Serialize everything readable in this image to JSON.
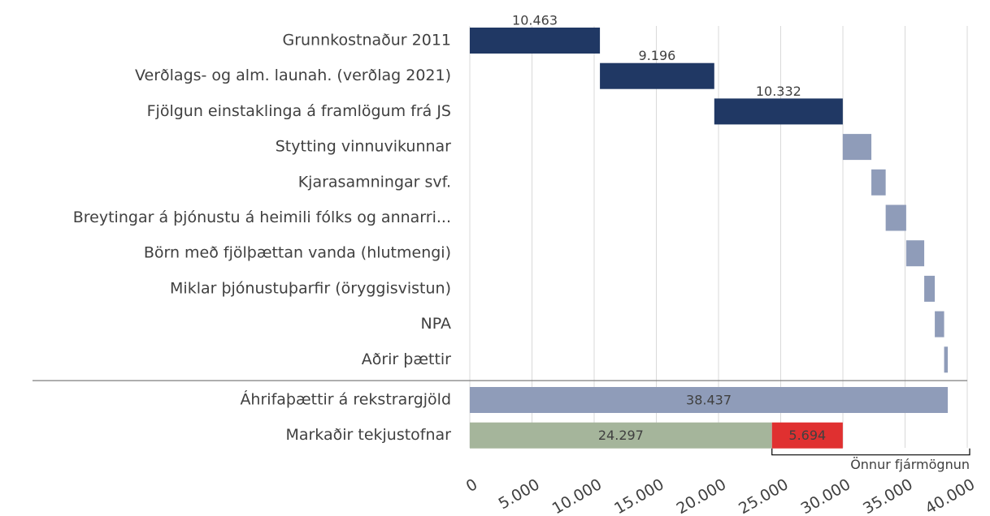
{
  "chart_data": {
    "type": "waterfall",
    "steps": {
      "categories": [
        "Grunnkostnaður 2011",
        "Verðlags- og alm. launah. (verðlag 2021)",
        "Fjölgun einstaklinga á framlögum frá JS",
        "Stytting vinnuvikunnar",
        "Kjarasamningar svf.",
        "Breytingar á þjónustu á heimili fólks og annarri...",
        "Börn með fjölþættan vanda (hlutmengi)",
        "Miklar þjónustuþarfir (öryggisvistun)",
        "NPA",
        "Aðrir þættir"
      ],
      "values": [
        10463,
        9196,
        10332,
        2300,
        1150,
        1650,
        1450,
        850,
        750,
        296
      ],
      "value_labels": [
        "10.463",
        "9.196",
        "10.332",
        null,
        null,
        null,
        null,
        null,
        null,
        null
      ],
      "colors": [
        "#203864",
        "#203864",
        "#203864",
        "#8f9cb9",
        "#8f9cb9",
        "#8f9cb9",
        "#8f9cb9",
        "#8f9cb9",
        "#8f9cb9",
        "#8f9cb9"
      ]
    },
    "totals": {
      "categories": [
        "Áhrifaþættir á rekstrargjöld",
        "Markaðir tekjustofnar"
      ],
      "segments": [
        [
          38437
        ],
        [
          24297,
          5694
        ]
      ],
      "value_labels": [
        [
          "38.437"
        ],
        [
          "24.297",
          "5.694"
        ]
      ],
      "colors": [
        [
          "#8f9cb9"
        ],
        [
          "#a5b59b",
          "#e03030"
        ]
      ]
    },
    "annotation": "Önnur fjármögnun",
    "xlim": [
      0,
      40000
    ],
    "xticks": [
      0,
      {
        "value": 5000,
        "label": "5.000"
      },
      {
        "value": 10000,
        "label": "10.000"
      },
      {
        "value": 15000,
        "label": "15.000"
      },
      {
        "value": 20000,
        "label": "20.000"
      },
      {
        "value": 25000,
        "label": "25.000"
      },
      {
        "value": 30000,
        "label": "30.000"
      },
      {
        "value": 35000,
        "label": "35.000"
      },
      {
        "value": 40000,
        "label": "40.000"
      }
    ],
    "grid": true
  }
}
